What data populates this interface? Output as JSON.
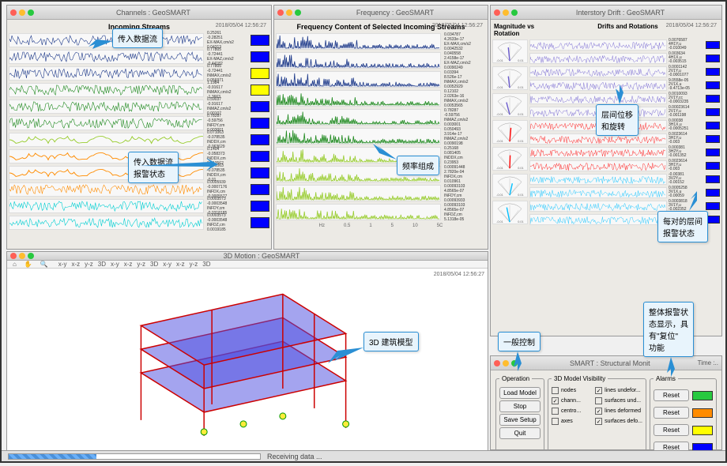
{
  "timestamp": "2018/05/04 12:56:27",
  "channels": {
    "title": "Channels : GeoSMART",
    "header": "Incoming Streams",
    "rows": [
      {
        "color": "#1e3a8a",
        "dense": true,
        "s1": "0.25261",
        "s2": "-0.28251",
        "s3": "EX-MAX,cm/s2",
        "s4": "0.04313",
        "badge": "#0000ff"
      },
      {
        "color": "#1e3a8a",
        "dense": true,
        "s1": "0.77805",
        "s2": "-0.72441",
        "s3": "EX-MAZ,cm/s2",
        "s4": "-0.44182",
        "badge": "#0000ff"
      },
      {
        "color": "#1e3a8a",
        "dense": true,
        "s1": "0.77805",
        "s2": "-0.72441",
        "s3": "INMAX,cm/s2",
        "s4": "0.056971",
        "badge": "#ffff00"
      },
      {
        "color": "#228B22",
        "dense": true,
        "s1": "1.1984",
        "s2": "-0.91617",
        "s3": "INMAX,cm/s2",
        "s4": "-1.3663",
        "badge": "#ffff00"
      },
      {
        "color": "#228B22",
        "dense": true,
        "s1": "0.59037",
        "s2": "-0.91617",
        "s3": "INMAZ,cm/s2",
        "s4": "0.00107",
        "badge": "#0000ff"
      },
      {
        "color": "#228B22",
        "dense": true,
        "s1": "0.78287",
        "s2": "-0.59756",
        "s3": "INFDY,cm",
        "s4": "0.003001",
        "badge": "#0000ff"
      },
      {
        "color": "#9acd32",
        "smooth": true,
        "s1": "0.071063",
        "s2": "-0.078535",
        "s3": "INDDX,cm",
        "s4": "-0.063629",
        "badge": "#0000ff"
      },
      {
        "color": "#ff8c00",
        "smooth": true,
        "s1": "0.1404",
        "s2": "-0.058373",
        "s3": "INDDX,cm",
        "s4": "0.013562",
        "badge": "#0000ff"
      },
      {
        "color": "#ff8c00",
        "smooth": true,
        "s1": "0.071063",
        "s2": "-0.078535",
        "s3": "INDDX,cm",
        "s4": "-0.01",
        "badge": "#0000ff"
      },
      {
        "color": "#ff8c00",
        "dense": true,
        "s1": "0.0005939",
        "s2": "-0.0007176",
        "s3": "INFDX,cm",
        "s4": "-0.0005577",
        "badge": "#0000ff"
      },
      {
        "color": "#00ced1",
        "dense": true,
        "s1": "0.0003573",
        "s2": "-0.0003548",
        "s3": "INFDY,cm",
        "s4": "-0.0318185",
        "badge": "#0000ff"
      },
      {
        "color": "#00ced1",
        "dense": true,
        "s1": "0.0003573",
        "s2": "-0.0003548",
        "s3": "INFDZ,cm",
        "s4": "0.0019185",
        "badge": "#0000ff"
      }
    ]
  },
  "frequency": {
    "title": "Frequency : GeoSMART",
    "header": "Frequency Content of Selected Incoming Streams",
    "axis_labels": [
      "Hz",
      "0.5",
      "1",
      "5",
      "10",
      "5C"
    ],
    "rows": [
      {
        "color": "#1e3a8a",
        "s1": "0.034787",
        "s2": "4.2633e-17",
        "s3": "EX-MAX,cm/s2",
        "s4": "0.0042532"
      },
      {
        "color": "#1e3a8a",
        "s1": "0.040558",
        "s2": "2.4158e-17",
        "s3": "EX-MAZ,cm/s2",
        "s4": "0.0090249"
      },
      {
        "color": "#1e3a8a",
        "s1": "0.03394",
        "s2": "8.526e-17",
        "s3": "INMAX,cm/s2",
        "s4": "0.0052929"
      },
      {
        "color": "#228B22",
        "s1": "0.12102",
        "s2": "2.0263e-16",
        "s3": "INMAX,cm/s2",
        "s4": "0.0053565"
      },
      {
        "color": "#228B22",
        "s1": "0.78287",
        "s2": "-0.59756",
        "s3": "INMAZ,cm/s2",
        "s4": "0.003001"
      },
      {
        "color": "#228B22",
        "s1": "0.050493",
        "s2": "3.914e-17",
        "s3": "INMAZ,cm/s2",
        "s4": "0.0090198"
      },
      {
        "color": "#9acd32",
        "s1": "0.25168",
        "s2": "0.081405",
        "s3": "INDDX,cm",
        "s4": "0.23953"
      },
      {
        "color": "#9acd32",
        "s1": "0.00091448",
        "s2": "2.7820e-04",
        "s3": "INFDX,cm",
        "s4": "0.010961"
      },
      {
        "color": "#9acd32",
        "s1": "0.00093103",
        "s2": "4.8565e-07",
        "s3": "INFDY,cm",
        "s4": "0.00093933"
      },
      {
        "color": "#9acd32",
        "s1": "0.00093103",
        "s2": "4.8565e-07",
        "s3": "INFDZ,cm",
        "s4": "5.1318e-05"
      }
    ]
  },
  "drift": {
    "title": "Interstory Drift : GeoSMART",
    "h1": "Magnitude vs Rotation",
    "h2": "Drifts and Rotations",
    "rows": [
      {
        "c": "#6a5acd",
        "s": [
          "0.0076587",
          "4H1Y,u",
          "-0.010049",
          "0.003634",
          "4H1X,u",
          "-0.003515"
        ]
      },
      {
        "c": "#6a5acd",
        "s": [
          "0.0001142",
          "2V1Y,u",
          "-0.0001077",
          "9.0558e-05",
          "2V1X,u",
          "-9.4713e-05"
        ]
      },
      {
        "c": "#6a5acd",
        "s": [
          "0.0010093",
          "2V1Y,cc",
          "-0.0003235",
          "0.00023614",
          "2V1Y,u",
          "-0.001198"
        ]
      },
      {
        "c": "#ff0000",
        "s": [
          "0.00038",
          "3H1X,u",
          "-0.0005251",
          "0.0023614",
          "3H1Y,u",
          "-0.003"
        ]
      },
      {
        "c": "#ff0000",
        "s": [
          "0.000381",
          "3H2Y,u",
          "-0.001352",
          "0.0023614",
          "3H1Y,u",
          "-0.003"
        ]
      },
      {
        "c": "#00bfff",
        "s": [
          "-0.00381",
          "3V2Y,u",
          "-0.00152",
          "0.0005258",
          "3V1X,u",
          "-0.00059"
        ]
      },
      {
        "c": "#00bfff",
        "s": [
          "0.0003818",
          "3V1Y,u",
          "-0.002352",
          "0.00023614",
          "3V1Y,cc",
          "-0.003"
        ]
      }
    ]
  },
  "motion3d": {
    "title": "3D Motion : GeoSMART",
    "toolbar": [
      "x-y",
      "x-z",
      "y-z",
      "3D",
      "x-y",
      "x-z",
      "y-z",
      "3D",
      "x-y",
      "x-z",
      "y-z",
      "3D"
    ]
  },
  "controls": {
    "title": "SMART : Structural Monit",
    "operation_legend": "Operation",
    "visibility_legend": "3D Model Visibility",
    "alarms_legend": "Alarms",
    "buttons": [
      "Load Model",
      "Stop",
      "Save Setup",
      "Quit"
    ],
    "checks": [
      {
        "l": "nodes",
        "c": false
      },
      {
        "l": "lines undefor...",
        "c": true
      },
      {
        "l": "chann...",
        "c": true
      },
      {
        "l": "surfaces und...",
        "c": false
      },
      {
        "l": "centro...",
        "c": false
      },
      {
        "l": "lines deformed",
        "c": true
      },
      {
        "l": "axes",
        "c": false
      },
      {
        "l": "surfaces defo...",
        "c": true
      }
    ],
    "reset": "Reset",
    "alarm_colors": [
      "#27c93f",
      "#ff8c00",
      "#ffff00",
      "#0000ff"
    ]
  },
  "callouts": {
    "c1": "传入数据流",
    "c2": "传入数据流\n报警状态",
    "c3": "频率组成",
    "c4": "层间位移\n和旋转",
    "c5": "每对的层间\n报警状态",
    "c6": "一般控制",
    "c7": "整体报警状\n态显示，具\n有\"复位\"\n功能",
    "c8": "3D 建筑模型"
  },
  "receiving": "Receiving data ..."
}
